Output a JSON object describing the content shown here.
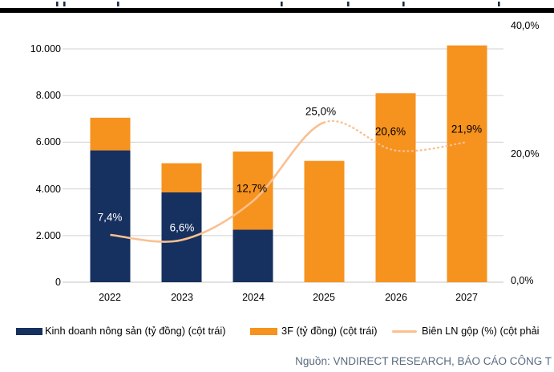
{
  "chart_data": {
    "type": "bar",
    "subtype": "stacked-bars-with-line-overlay",
    "categories": [
      "2022",
      "2023",
      "2024",
      "2025",
      "2026",
      "2027"
    ],
    "series": [
      {
        "name": "Kinh doanh nông sản (tỷ đồng) (cột trái)",
        "type": "bar",
        "stacked": true,
        "axis": "left",
        "color": "#16305F",
        "values": [
          5650,
          3850,
          2250,
          0,
          0,
          0
        ]
      },
      {
        "name": "3F (tỷ đồng) (cột trái)",
        "type": "bar",
        "stacked": true,
        "axis": "left",
        "color": "#F6921E",
        "values": [
          1400,
          1250,
          3350,
          5200,
          8100,
          10150
        ]
      },
      {
        "name": "Biên LN gộp (%) (cột phải",
        "type": "line",
        "axis": "right",
        "color": "#FAC090",
        "line_style": "solid through 2025, dotted from 2025 to 2027",
        "values": [
          7.4,
          6.6,
          12.7,
          25.0,
          20.6,
          21.9
        ]
      }
    ],
    "point_labels": [
      "7,4%",
      "6,6%",
      "12,7%",
      "25,0%",
      "20,6%",
      "21,9%"
    ],
    "left_axis": {
      "range": [
        0,
        10000
      ],
      "ticks": [
        "10.000",
        "8.000",
        "6.000",
        "4.000",
        "2.000",
        "0"
      ]
    },
    "right_axis": {
      "range": [
        0,
        40
      ],
      "ticks": [
        "40,0%",
        "20,0%",
        "0,0%"
      ]
    },
    "grid": "horizontal gridlines on",
    "legend_position": "bottom"
  },
  "legend": {
    "items": [
      {
        "label": "Kinh doanh nông sản (tỷ đồng) (cột trái)"
      },
      {
        "label": "3F (tỷ đồng) (cột trái)"
      },
      {
        "label": "Biên LN gộp (%) (cột phải"
      }
    ]
  },
  "source": {
    "text": "Nguồn: VNDIRECT RESEARCH, BÁO CÁO CÔNG T"
  },
  "colors": {
    "gridline": "#D9D9D9",
    "divider": "#000000"
  }
}
